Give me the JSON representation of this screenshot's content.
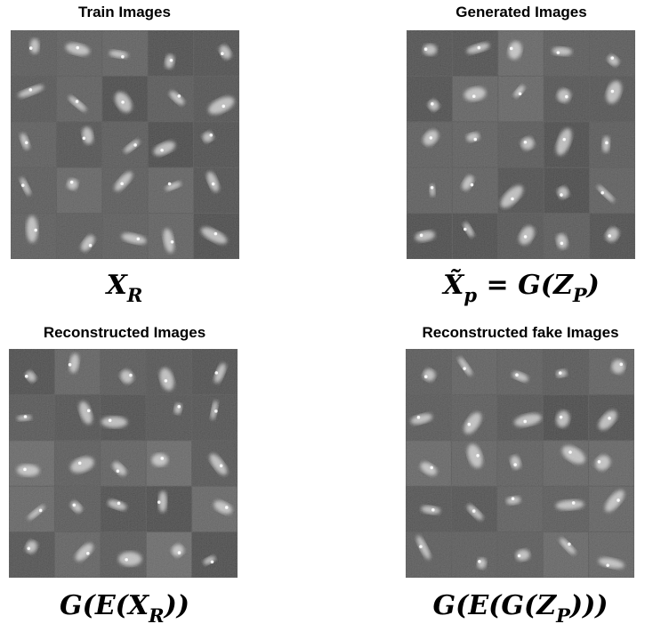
{
  "panels": [
    {
      "title": "Train Images",
      "caption": [
        {
          "text": "X",
          "sub": false
        },
        {
          "text": "R",
          "sub": true
        }
      ]
    },
    {
      "title": "Generated Images",
      "caption": [
        {
          "text": "X̃",
          "sub": false
        },
        {
          "text": "p",
          "sub": true
        },
        {
          "text": " = G(Z",
          "sub": false
        },
        {
          "text": "P",
          "sub": true
        },
        {
          "text": ")",
          "sub": false
        }
      ]
    },
    {
      "title": "Reconstructed Images",
      "caption": [
        {
          "text": "G(E(X",
          "sub": false
        },
        {
          "text": "R",
          "sub": true
        },
        {
          "text": "))",
          "sub": false
        }
      ]
    },
    {
      "title": "Reconstructed fake Images",
      "caption": [
        {
          "text": "G(E(G(Z",
          "sub": false
        },
        {
          "text": "P",
          "sub": true
        },
        {
          "text": ")))",
          "sub": false
        }
      ]
    }
  ]
}
